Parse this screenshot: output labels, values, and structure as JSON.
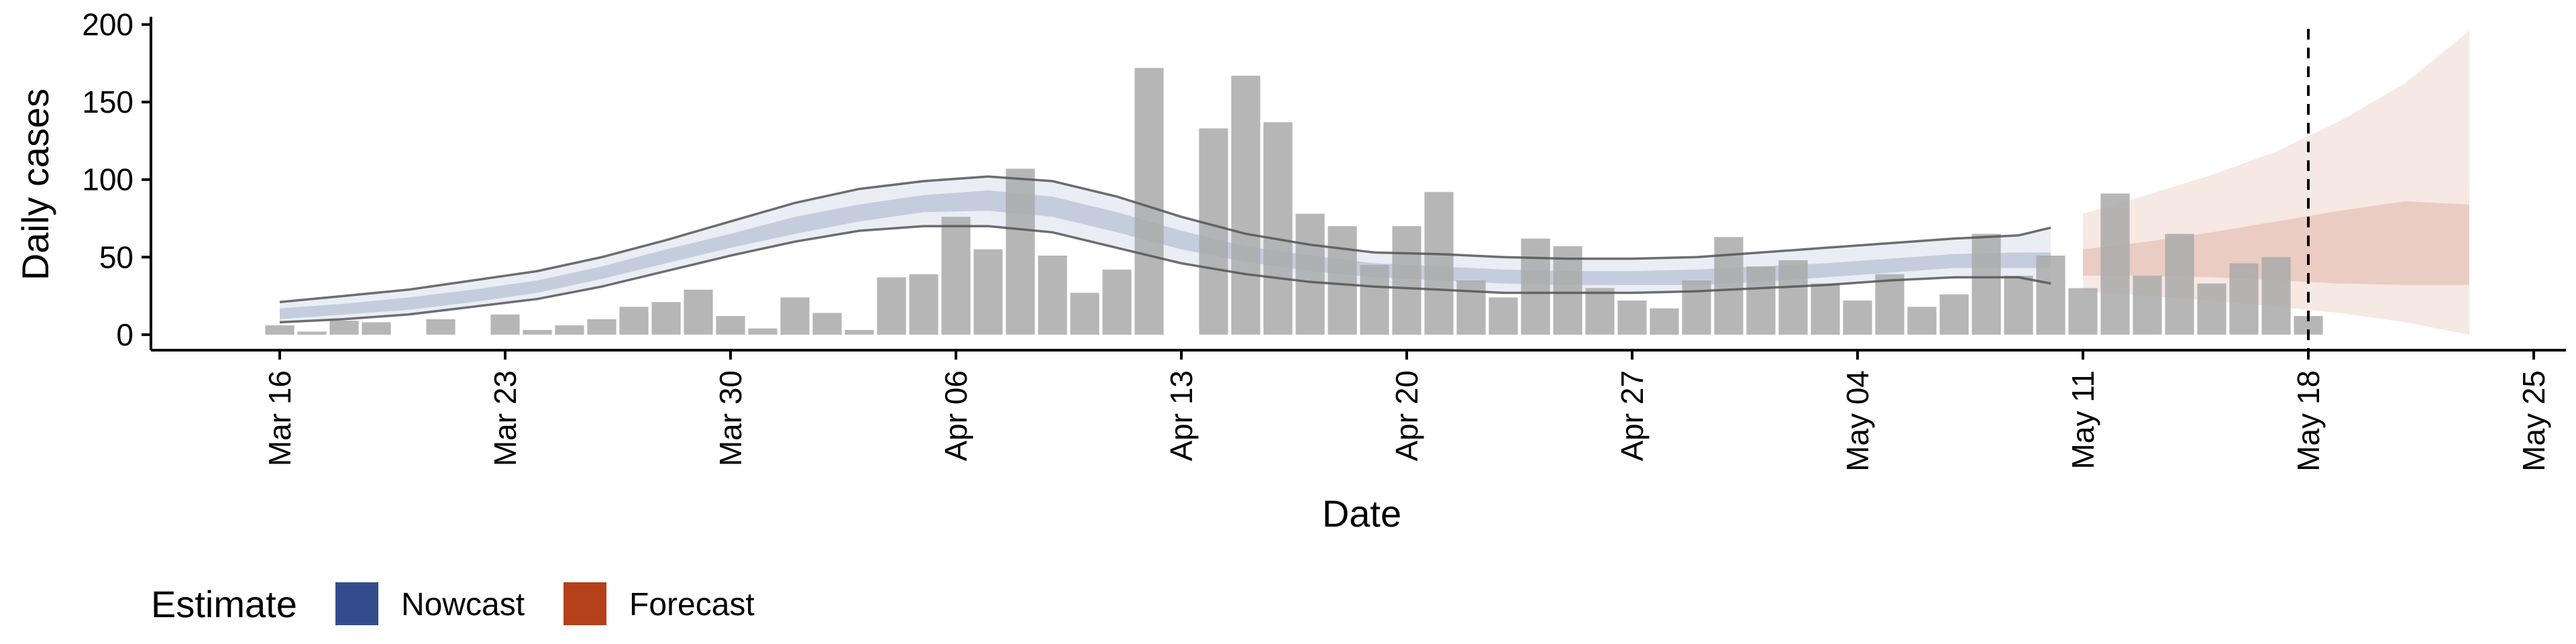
{
  "chart_data": {
    "type": "bar",
    "xlabel": "Date",
    "ylabel": "Daily cases",
    "ylim": [
      -10,
      205
    ],
    "xlim": [
      "2020-03-12",
      "2020-05-26"
    ],
    "y_ticks": [
      0,
      50,
      100,
      150,
      200
    ],
    "x_ticks": [
      {
        "date": "2020-03-16",
        "label": "Mar 16"
      },
      {
        "date": "2020-03-23",
        "label": "Mar 23"
      },
      {
        "date": "2020-03-30",
        "label": "Mar 30"
      },
      {
        "date": "2020-04-06",
        "label": "Apr 06"
      },
      {
        "date": "2020-04-13",
        "label": "Apr 13"
      },
      {
        "date": "2020-04-20",
        "label": "Apr 20"
      },
      {
        "date": "2020-04-27",
        "label": "Apr 27"
      },
      {
        "date": "2020-05-04",
        "label": "May 04"
      },
      {
        "date": "2020-05-11",
        "label": "May 11"
      },
      {
        "date": "2020-05-18",
        "label": "May 18"
      },
      {
        "date": "2020-05-25",
        "label": "May 25"
      }
    ],
    "reference_line": {
      "date": "2020-05-18",
      "style": "dashed"
    },
    "bars": {
      "start_date": "2020-03-16",
      "color": "#a9a9a9",
      "values": [
        6,
        2,
        9,
        8,
        0,
        10,
        0,
        13,
        3,
        6,
        10,
        18,
        21,
        29,
        12,
        4,
        24,
        14,
        3,
        37,
        39,
        76,
        55,
        107,
        51,
        27,
        42,
        172,
        0,
        133,
        167,
        137,
        78,
        70,
        45,
        70,
        92,
        35,
        24,
        62,
        57,
        30,
        22,
        17,
        35,
        63,
        44,
        48,
        33,
        22,
        39,
        18,
        26,
        65,
        38,
        51,
        30,
        91,
        38,
        65,
        33,
        46,
        50,
        12
      ]
    },
    "series": [
      {
        "name": "Nowcast",
        "color": "#334d8c",
        "x": [
          "2020-03-16",
          "2020-03-18",
          "2020-03-20",
          "2020-03-22",
          "2020-03-24",
          "2020-03-26",
          "2020-03-28",
          "2020-03-30",
          "2020-04-01",
          "2020-04-03",
          "2020-04-05",
          "2020-04-07",
          "2020-04-09",
          "2020-04-11",
          "2020-04-13",
          "2020-04-15",
          "2020-04-17",
          "2020-04-19",
          "2020-04-21",
          "2020-04-23",
          "2020-04-25",
          "2020-04-27",
          "2020-04-29",
          "2020-05-01",
          "2020-05-03",
          "2020-05-05",
          "2020-05-07",
          "2020-05-09",
          "2020-05-10"
        ],
        "median": [
          13,
          16,
          20,
          25,
          31,
          40,
          50,
          60,
          70,
          78,
          84,
          86,
          82,
          72,
          61,
          52,
          46,
          42,
          40,
          38,
          37,
          37,
          37,
          39,
          41,
          44,
          47,
          48,
          48
        ],
        "inner_lower": [
          10,
          13,
          16,
          21,
          27,
          36,
          46,
          56,
          65,
          73,
          79,
          80,
          76,
          66,
          55,
          47,
          41,
          37,
          35,
          33,
          32,
          32,
          32,
          34,
          37,
          40,
          43,
          43,
          43
        ],
        "inner_upper": [
          17,
          20,
          24,
          29,
          35,
          44,
          55,
          65,
          76,
          84,
          90,
          93,
          89,
          79,
          67,
          57,
          51,
          46,
          44,
          42,
          41,
          41,
          42,
          44,
          46,
          49,
          52,
          53,
          53
        ],
        "outer_lower": [
          8,
          10,
          13,
          18,
          23,
          31,
          41,
          51,
          60,
          67,
          70,
          70,
          66,
          56,
          46,
          39,
          34,
          31,
          29,
          27,
          27,
          27,
          28,
          30,
          32,
          35,
          37,
          37,
          33
        ],
        "outer_upper": [
          21,
          25,
          29,
          35,
          41,
          50,
          61,
          73,
          85,
          94,
          99,
          102,
          99,
          89,
          76,
          65,
          58,
          53,
          52,
          50,
          49,
          49,
          50,
          53,
          56,
          59,
          62,
          64,
          69
        ]
      },
      {
        "name": "Forecast",
        "color": "#b5411a",
        "x": [
          "2020-05-11",
          "2020-05-13",
          "2020-05-15",
          "2020-05-17",
          "2020-05-19",
          "2020-05-21",
          "2020-05-23"
        ],
        "median": [
          46,
          48,
          50,
          52,
          54,
          56,
          58
        ],
        "inner_lower": [
          38,
          38,
          37,
          35,
          33,
          32,
          32
        ],
        "inner_upper": [
          55,
          60,
          66,
          73,
          80,
          86,
          84
        ],
        "outer_lower": [
          28,
          25,
          22,
          18,
          14,
          8,
          0
        ],
        "outer_upper": [
          78,
          90,
          103,
          118,
          138,
          162,
          196
        ]
      }
    ],
    "legend": {
      "position": "bottom-left",
      "title": "Estimate",
      "entries": [
        {
          "label": "Nowcast",
          "color": "#334d8c"
        },
        {
          "label": "Forecast",
          "color": "#b5411a"
        }
      ]
    },
    "grid": false
  }
}
